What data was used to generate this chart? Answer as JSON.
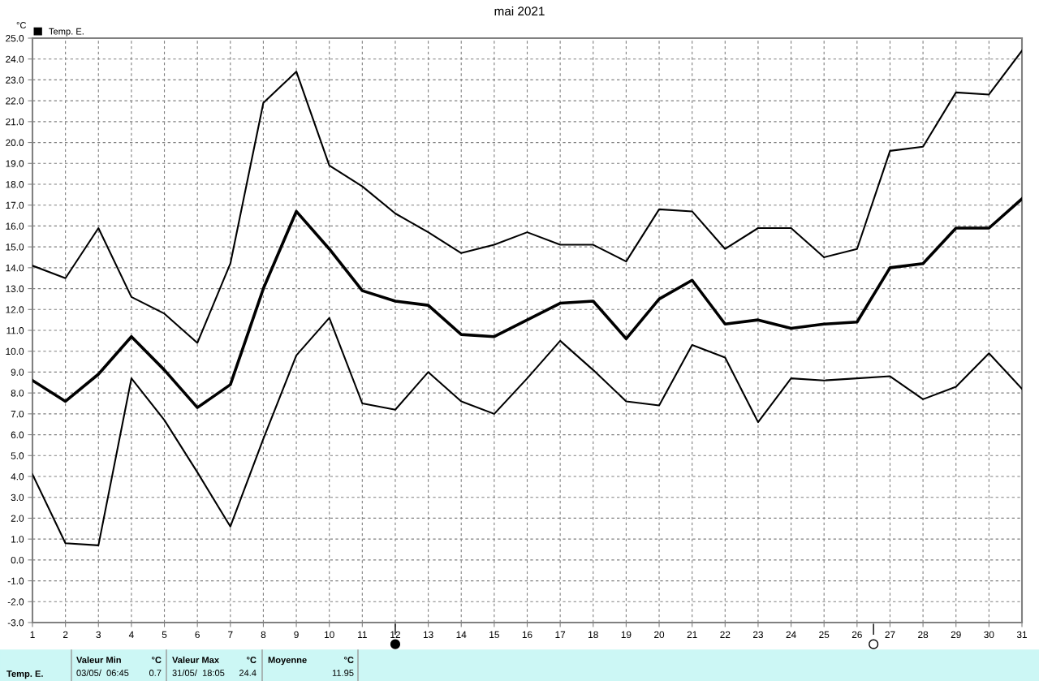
{
  "chart_data": {
    "type": "line",
    "title": "mai 2021",
    "ylabel": "°C",
    "categories": [
      "1",
      "2",
      "3",
      "4",
      "5",
      "6",
      "7",
      "8",
      "9",
      "10",
      "11",
      "12",
      "13",
      "14",
      "15",
      "16",
      "17",
      "18",
      "19",
      "20",
      "21",
      "22",
      "23",
      "24",
      "25",
      "26",
      "27",
      "28",
      "29",
      "30",
      "31"
    ],
    "series": [
      {
        "color": "#000000",
        "values": [
          14.1,
          13.5,
          15.9,
          12.6,
          11.8,
          10.4,
          14.2,
          21.9,
          23.4,
          18.9,
          17.9,
          16.6,
          15.7,
          14.7,
          15.1,
          15.7,
          15.1,
          15.1,
          14.3,
          16.8,
          16.7,
          14.9,
          15.9,
          15.9,
          14.5,
          14.9,
          19.6,
          19.8,
          22.4,
          22.3,
          24.4
        ]
      },
      {
        "name": "Temp. E.",
        "color": "#000000",
        "values": [
          8.6,
          7.6,
          8.9,
          10.7,
          9.1,
          7.3,
          8.4,
          13.0,
          16.7,
          14.9,
          12.9,
          12.4,
          12.2,
          10.8,
          10.7,
          11.5,
          12.3,
          12.4,
          10.6,
          12.5,
          13.4,
          11.3,
          11.5,
          11.1,
          11.3,
          11.4,
          14.0,
          14.2,
          15.9,
          15.9,
          17.3
        ]
      },
      {
        "color": "#000000",
        "values": [
          4.1,
          0.8,
          0.7,
          8.7,
          6.7,
          4.2,
          1.6,
          5.8,
          9.8,
          11.6,
          7.5,
          7.2,
          9.0,
          7.6,
          7.0,
          8.7,
          10.5,
          9.1,
          7.6,
          7.4,
          10.3,
          9.7,
          6.6,
          8.7,
          8.6,
          8.7,
          8.8,
          7.7,
          8.3,
          9.9,
          8.2
        ]
      }
    ],
    "ylim": [
      -3,
      25
    ],
    "yticks": [
      {
        "value": -3,
        "label": "-3.0"
      },
      {
        "value": -2,
        "label": "-2.0"
      },
      {
        "value": -1,
        "label": "-1.0"
      },
      {
        "value": 0,
        "label": "0.0"
      },
      {
        "value": 1,
        "label": "1.0"
      },
      {
        "value": 2,
        "label": "2.0"
      },
      {
        "value": 3,
        "label": "3.0"
      },
      {
        "value": 4,
        "label": "4.0"
      },
      {
        "value": 5,
        "label": "5.0"
      },
      {
        "value": 6,
        "label": "6.0"
      },
      {
        "value": 7,
        "label": "7.0"
      },
      {
        "value": 8,
        "label": "8.0"
      },
      {
        "value": 9,
        "label": "9.0"
      },
      {
        "value": 10,
        "label": "10.0"
      },
      {
        "value": 11,
        "label": "11.0"
      },
      {
        "value": 12,
        "label": "12.0"
      },
      {
        "value": 13,
        "label": "13.0"
      },
      {
        "value": 14,
        "label": "14.0"
      },
      {
        "value": 15,
        "label": "15.0"
      },
      {
        "value": 16,
        "label": "16.0"
      },
      {
        "value": 17,
        "label": "17.0"
      },
      {
        "value": 18,
        "label": "18.0"
      },
      {
        "value": 19,
        "label": "19.0"
      },
      {
        "value": 20,
        "label": "20.0"
      },
      {
        "value": 21,
        "label": "21.0"
      },
      {
        "value": 22,
        "label": "22.0"
      },
      {
        "value": 23,
        "label": "23.0"
      },
      {
        "value": 24,
        "label": "24.0"
      },
      {
        "value": 25,
        "label": "25.0"
      }
    ],
    "grid": true,
    "legend": "top left",
    "marker": "none",
    "line_style": "solid",
    "annotations": [
      "Temp. E.",
      "Valeur Min",
      "°C",
      "03/05/  06:45",
      "0.7",
      "Valeur Max",
      "°C",
      "31/05/  18:05",
      "24.4",
      "Moyenne",
      "°C",
      "11.95"
    ]
  }
}
